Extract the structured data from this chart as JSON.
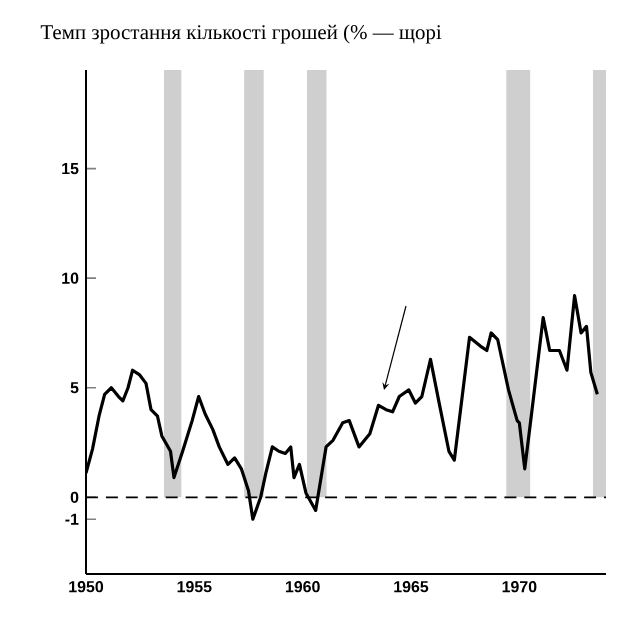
{
  "chart_data": {
    "type": "line",
    "title": "Темп зростання кількості грошей (% — щорі",
    "x": [
      1950.0,
      1950.3,
      1950.6,
      1950.86,
      1951.17,
      1951.5,
      1951.7,
      1951.94,
      1952.15,
      1952.46,
      1952.77,
      1953.0,
      1953.3,
      1953.5,
      1953.9,
      1954.06,
      1954.46,
      1954.9,
      1955.2,
      1955.5,
      1955.85,
      1956.15,
      1956.55,
      1956.86,
      1957.17,
      1957.5,
      1957.7,
      1958.06,
      1958.3,
      1958.6,
      1958.9,
      1959.2,
      1959.45,
      1959.6,
      1959.85,
      1960.15,
      1960.6,
      1961.08,
      1961.4,
      1961.85,
      1962.15,
      1962.6,
      1963.1,
      1963.5,
      1963.85,
      1964.15,
      1964.46,
      1964.9,
      1965.2,
      1965.5,
      1965.9,
      1966.3,
      1966.75,
      1967.0,
      1967.4,
      1967.7,
      1968.2,
      1968.5,
      1968.7,
      1969.0,
      1969.5,
      1969.9,
      1970.0,
      1970.25,
      1970.55,
      1971.1,
      1971.4,
      1971.85,
      1972.2,
      1972.55,
      1972.85,
      1973.1,
      1973.3,
      1973.6
    ],
    "values": [
      1.1,
      2.2,
      3.7,
      4.7,
      5.0,
      4.6,
      4.4,
      5.0,
      5.8,
      5.6,
      5.2,
      4.0,
      3.7,
      2.8,
      2.1,
      0.9,
      2.1,
      3.5,
      4.6,
      3.8,
      3.1,
      2.3,
      1.5,
      1.8,
      1.3,
      0.3,
      -1.0,
      0.0,
      1.1,
      2.3,
      2.1,
      2.0,
      2.3,
      0.9,
      1.5,
      0.2,
      -0.6,
      2.3,
      2.6,
      3.4,
      3.5,
      2.3,
      2.9,
      4.2,
      4.0,
      3.9,
      4.6,
      4.9,
      4.3,
      4.6,
      6.3,
      4.3,
      2.1,
      1.7,
      4.9,
      7.3,
      6.9,
      6.7,
      7.5,
      7.2,
      4.9,
      3.5,
      3.4,
      1.3,
      3.7,
      8.2,
      6.7,
      6.7,
      5.8,
      9.2,
      7.5,
      7.8,
      5.7,
      4.7
    ],
    "color": "#000000",
    "xlim": [
      1950,
      1974
    ],
    "ylim": [
      -3.5,
      19.5
    ],
    "xticks": [
      1950,
      1955,
      1960,
      1965,
      1970
    ],
    "yticks": [
      -1,
      0,
      5,
      10,
      15
    ],
    "bands": [
      {
        "axis": "x",
        "from": 1953.6,
        "to": 1954.4,
        "color": "#cfcfcf"
      },
      {
        "axis": "x",
        "from": 1957.3,
        "to": 1958.2,
        "color": "#cfcfcf"
      },
      {
        "axis": "x",
        "from": 1960.2,
        "to": 1961.1,
        "color": "#cfcfcf"
      },
      {
        "axis": "x",
        "from": 1969.4,
        "to": 1970.5,
        "color": "#cfcfcf"
      },
      {
        "axis": "x",
        "from": 1973.4,
        "to": 1974,
        "color": "#cfcfcf"
      }
    ],
    "ref_lines": [
      {
        "axis": "y",
        "value": 0,
        "line_style": "dashed"
      }
    ]
  }
}
